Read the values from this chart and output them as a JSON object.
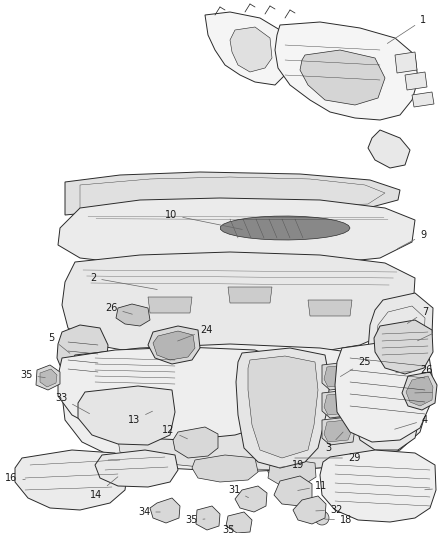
{
  "bg_color": "#ffffff",
  "fig_width": 4.38,
  "fig_height": 5.33,
  "dpi": 100,
  "lc": "#2a2a2a",
  "lw": 0.7,
  "fc_light": "#f5f5f5",
  "fc_mid": "#e8e8e8",
  "fc_dark": "#d8d8d8",
  "fc_darker": "#c8c8c8",
  "label_fs": 7.0,
  "callout_lw": 0.5,
  "callout_color": "#555555"
}
